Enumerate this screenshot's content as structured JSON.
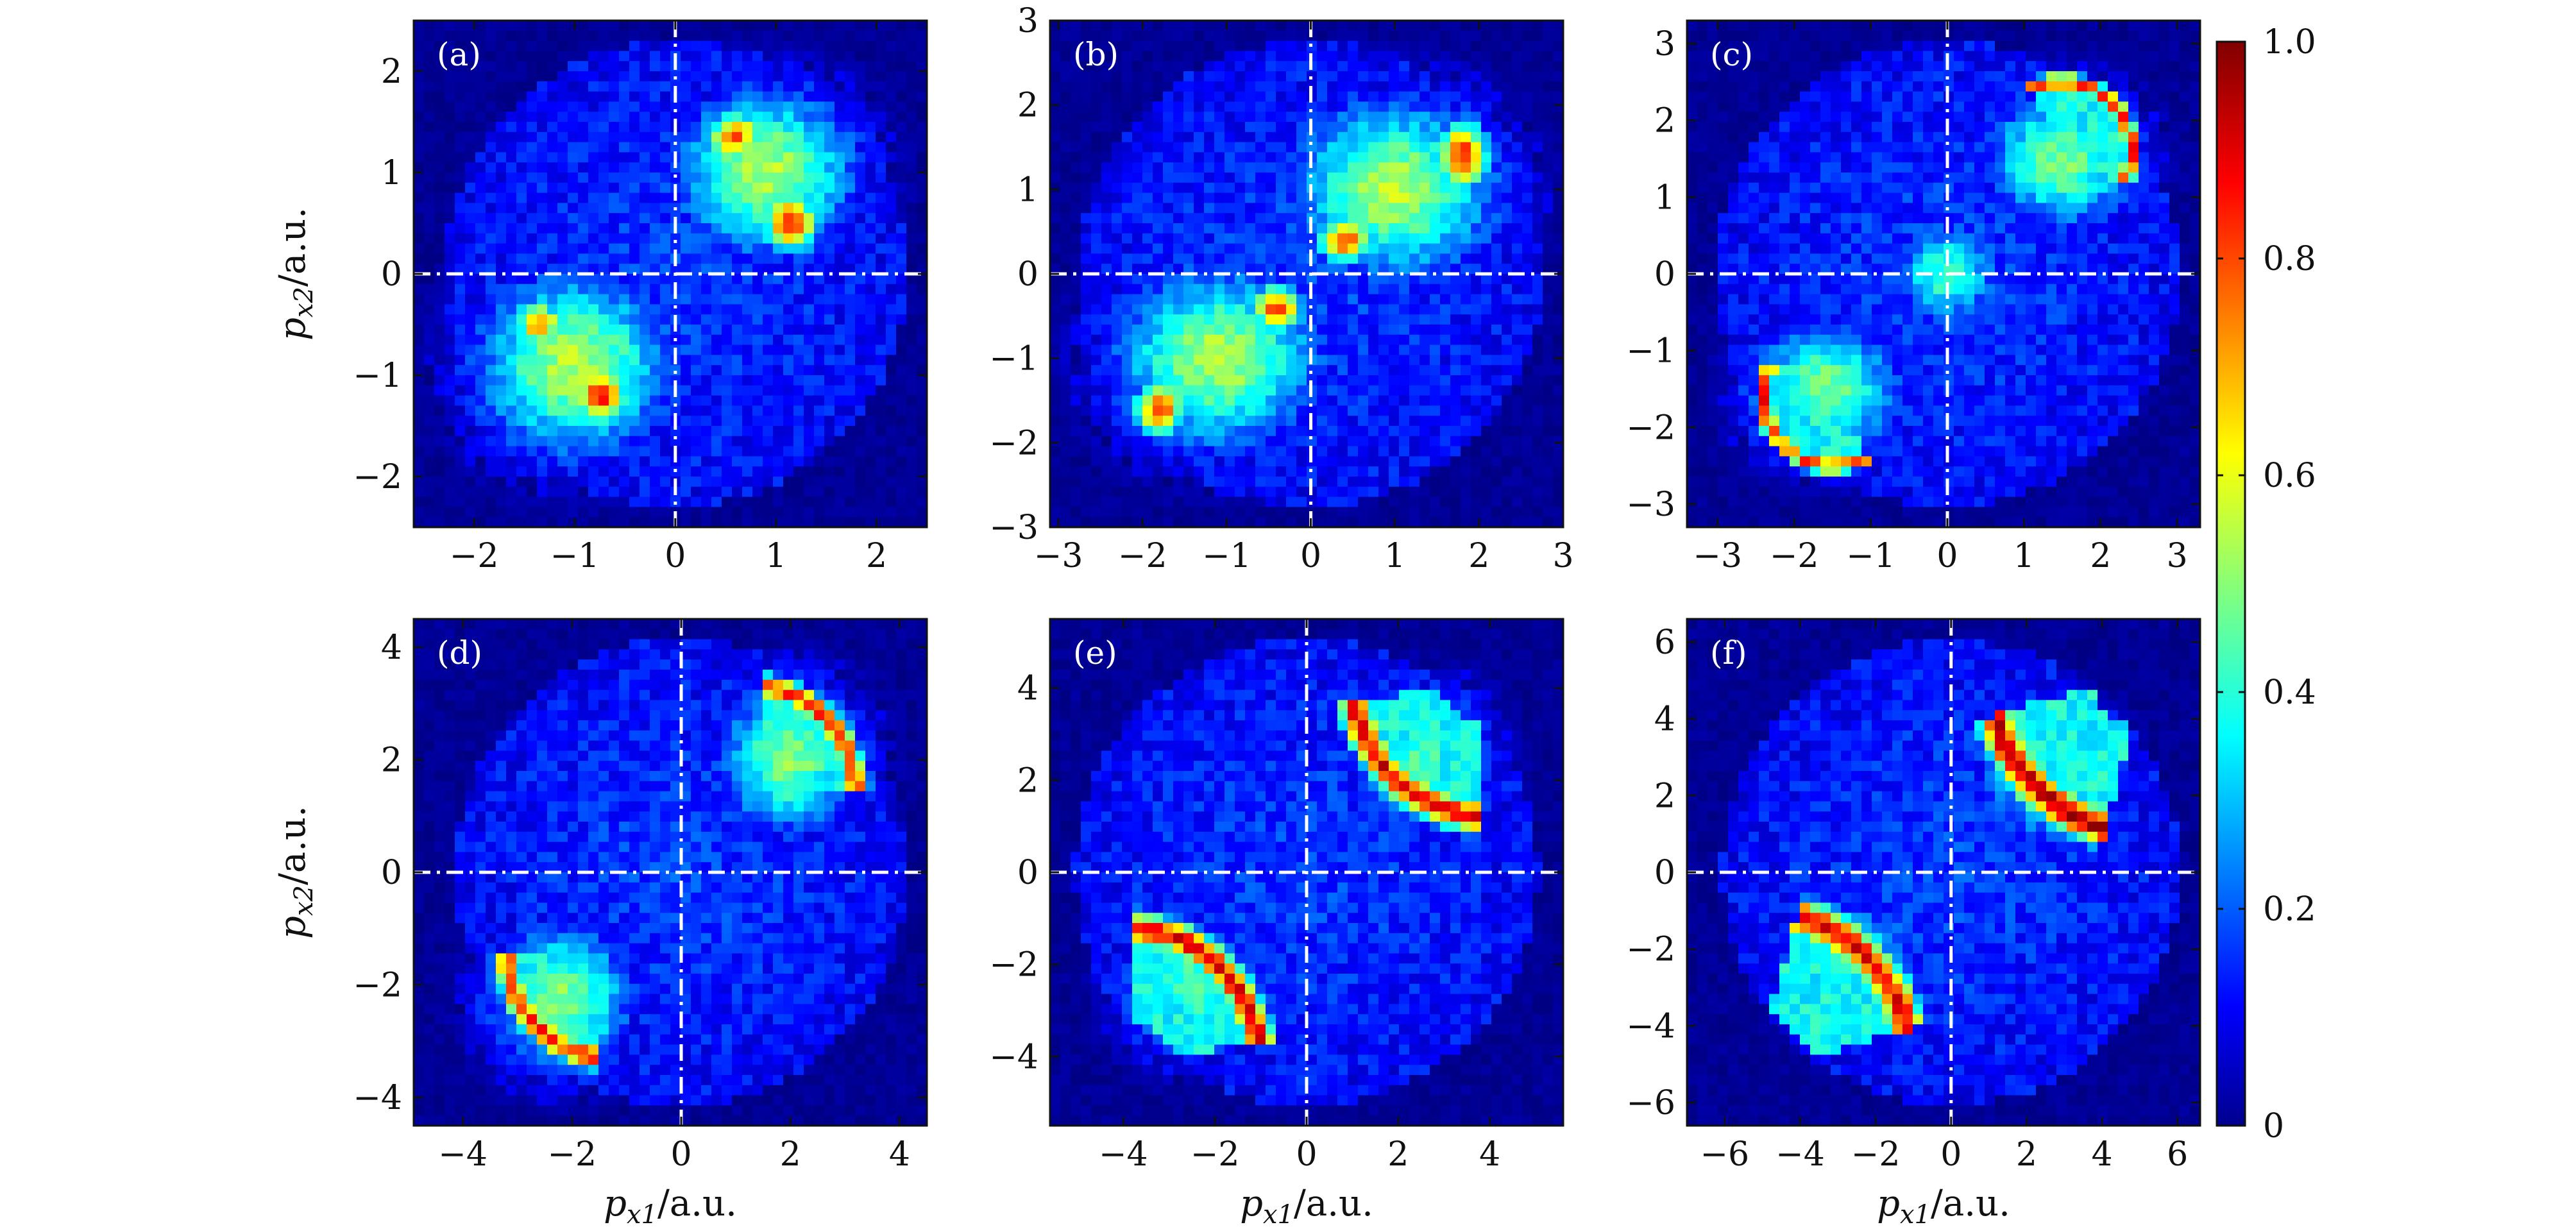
{
  "chart_data": {
    "type": "heatmap",
    "colorbar": {
      "min": 0,
      "max": 1,
      "ticks": [
        0,
        0.2,
        0.4,
        0.6,
        0.8,
        1.0
      ],
      "tick_labels": [
        "0",
        "0.2",
        "0.4",
        "0.6",
        "0.8",
        "1.0"
      ],
      "colormap": "jet"
    },
    "panels": [
      {
        "label": "(a)",
        "xlim": [
          -2.6,
          2.5
        ],
        "ylim": [
          -2.5,
          2.5
        ],
        "xticks": [
          -2,
          -1,
          0,
          1,
          2
        ],
        "yticks": [
          -2,
          -1,
          0,
          1,
          2
        ],
        "xlabel": "",
        "ylabel": "p_x2/a.u.",
        "features": [
          {
            "shape": "blob",
            "x": 0.9,
            "y": 1.0,
            "rx": 1.1,
            "ry": 1.0,
            "level": 0.55
          },
          {
            "shape": "blob",
            "x": -1.0,
            "y": -0.9,
            "rx": 1.2,
            "ry": 1.1,
            "level": 0.55
          },
          {
            "shape": "blob",
            "x": 1.15,
            "y": 0.5,
            "rx": 0.35,
            "ry": 0.35,
            "level": 0.85
          },
          {
            "shape": "blob",
            "x": 0.6,
            "y": 1.35,
            "rx": 0.35,
            "ry": 0.3,
            "level": 0.8
          },
          {
            "shape": "blob",
            "x": -0.75,
            "y": -1.2,
            "rx": 0.35,
            "ry": 0.35,
            "level": 0.85
          },
          {
            "shape": "blob",
            "x": -1.35,
            "y": -0.5,
            "rx": 0.3,
            "ry": 0.3,
            "level": 0.75
          }
        ]
      },
      {
        "label": "(b)",
        "xlim": [
          -3.1,
          3.0
        ],
        "ylim": [
          -3.0,
          3.0
        ],
        "xticks": [
          -3,
          -2,
          -1,
          0,
          1,
          2,
          3
        ],
        "yticks": [
          -3,
          -2,
          -1,
          0,
          1,
          2,
          3
        ],
        "xlabel": "",
        "ylabel": "",
        "features": [
          {
            "shape": "blob",
            "x": 1.0,
            "y": 1.0,
            "rx": 1.5,
            "ry": 1.3,
            "level": 0.55
          },
          {
            "shape": "blob",
            "x": -1.1,
            "y": -1.0,
            "rx": 1.5,
            "ry": 1.3,
            "level": 0.55
          },
          {
            "shape": "blob",
            "x": 1.8,
            "y": 1.4,
            "rx": 0.4,
            "ry": 0.5,
            "level": 0.85
          },
          {
            "shape": "blob",
            "x": 0.4,
            "y": 0.4,
            "rx": 0.4,
            "ry": 0.35,
            "level": 0.8
          },
          {
            "shape": "blob",
            "x": -0.4,
            "y": -0.4,
            "rx": 0.4,
            "ry": 0.35,
            "level": 0.8
          },
          {
            "shape": "blob",
            "x": -1.8,
            "y": -1.6,
            "rx": 0.4,
            "ry": 0.4,
            "level": 0.8
          }
        ]
      },
      {
        "label": "(c)",
        "xlim": [
          -3.4,
          3.3
        ],
        "ylim": [
          -3.3,
          3.3
        ],
        "xticks": [
          -3,
          -2,
          -1,
          0,
          1,
          2,
          3
        ],
        "yticks": [
          -3,
          -2,
          -1,
          0,
          1,
          2,
          3
        ],
        "xlabel": "",
        "ylabel": "",
        "features": [
          {
            "shape": "blob",
            "x": 1.5,
            "y": 1.5,
            "rx": 1.2,
            "ry": 1.1,
            "level": 0.5
          },
          {
            "shape": "blob",
            "x": -1.6,
            "y": -1.5,
            "rx": 1.2,
            "ry": 1.1,
            "level": 0.5
          },
          {
            "shape": "blob",
            "x": 0.0,
            "y": 0.0,
            "rx": 0.8,
            "ry": 0.8,
            "level": 0.45
          },
          {
            "shape": "arc",
            "cx": 1.5,
            "cy": 1.6,
            "r": 0.9,
            "a0": -30,
            "a1": 120,
            "level": 0.9
          },
          {
            "shape": "arc",
            "cx": -1.5,
            "cy": -1.6,
            "r": 0.9,
            "a0": 150,
            "a1": 300,
            "level": 0.85
          }
        ]
      },
      {
        "label": "(d)",
        "xlim": [
          -4.9,
          4.5
        ],
        "ylim": [
          -4.5,
          4.5
        ],
        "xticks": [
          -4,
          -2,
          0,
          2,
          4
        ],
        "yticks": [
          -4,
          -2,
          0,
          2,
          4
        ],
        "xlabel": "p_x1/a.u.",
        "ylabel": "p_x2/a.u.",
        "features": [
          {
            "shape": "blob",
            "x": 2.0,
            "y": 2.0,
            "rx": 1.6,
            "ry": 1.6,
            "level": 0.5
          },
          {
            "shape": "blob",
            "x": -2.2,
            "y": -2.2,
            "rx": 1.6,
            "ry": 1.6,
            "level": 0.5
          },
          {
            "shape": "arc",
            "cx": 1.3,
            "cy": 1.4,
            "r": 1.9,
            "a0": 0,
            "a1": 85,
            "level": 0.85
          },
          {
            "shape": "arc",
            "cx": -1.3,
            "cy": -1.4,
            "r": 1.9,
            "a0": 180,
            "a1": 265,
            "level": 0.85
          }
        ]
      },
      {
        "label": "(e)",
        "xlim": [
          -5.6,
          5.6
        ],
        "ylim": [
          -5.5,
          5.5
        ],
        "xticks": [
          -4,
          -2,
          0,
          2,
          4
        ],
        "yticks": [
          -4,
          -2,
          0,
          2,
          4
        ],
        "xlabel": "p_x1/a.u.",
        "ylabel": "",
        "features": [
          {
            "shape": "blob",
            "x": 2.5,
            "y": 2.5,
            "rx": 1.8,
            "ry": 1.8,
            "level": 0.45
          },
          {
            "shape": "blob",
            "x": -2.5,
            "y": -2.5,
            "rx": 1.8,
            "ry": 1.8,
            "level": 0.45
          },
          {
            "shape": "arc",
            "cx": 4.0,
            "cy": 4.2,
            "r": 3.0,
            "a0": 190,
            "a1": 265,
            "level": 0.9
          },
          {
            "shape": "arc",
            "cx": -4.0,
            "cy": -4.2,
            "r": 3.0,
            "a0": 10,
            "a1": 85,
            "level": 0.9
          }
        ]
      },
      {
        "label": "(f)",
        "xlim": [
          -7.0,
          6.6
        ],
        "ylim": [
          -6.6,
          6.6
        ],
        "xticks": [
          -6,
          -4,
          -2,
          0,
          2,
          4,
          6
        ],
        "yticks": [
          -6,
          -4,
          -2,
          0,
          2,
          4,
          6
        ],
        "xlabel": "p_x1/a.u.",
        "ylabel": "",
        "features": [
          {
            "shape": "blob",
            "x": 2.5,
            "y": 2.5,
            "rx": 2.2,
            "ry": 2.2,
            "level": 0.4
          },
          {
            "shape": "blob",
            "x": -2.5,
            "y": -2.5,
            "rx": 2.2,
            "ry": 2.2,
            "level": 0.4
          },
          {
            "shape": "arc",
            "cx": 5.2,
            "cy": 5.2,
            "r": 4.2,
            "a0": 195,
            "a1": 255,
            "level": 0.95
          },
          {
            "shape": "arc",
            "cx": -5.2,
            "cy": -5.2,
            "r": 4.2,
            "a0": 15,
            "a1": 75,
            "level": 0.9
          }
        ]
      }
    ]
  }
}
